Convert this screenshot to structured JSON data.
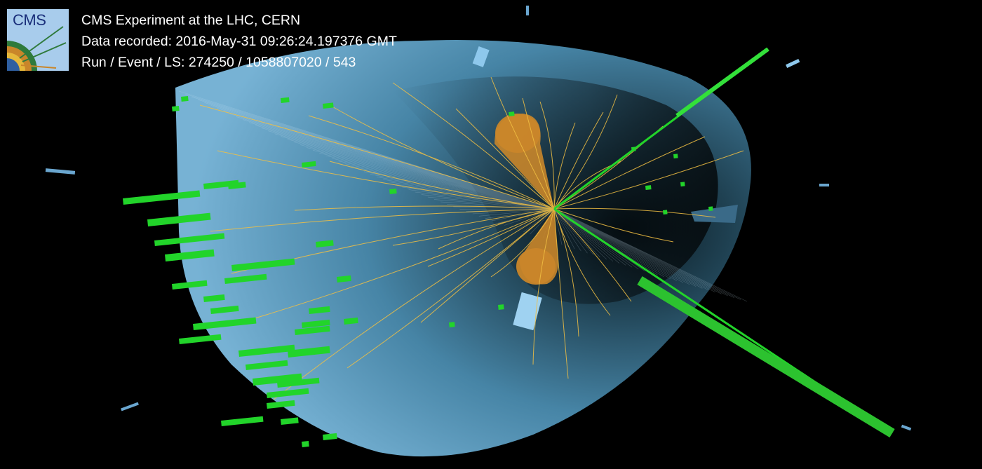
{
  "header": {
    "logo_text": "CMS",
    "experiment": "CMS Experiment at the LHC, CERN",
    "data_recorded": "Data recorded: 2016-May-31 09:26:24.197376 GMT",
    "run_event_ls": "Run / Event / LS: 274250 / 1058807020 / 543"
  },
  "colors": {
    "background": "#000000",
    "detector": "#7fc3ea",
    "tracks": "#f2c043",
    "jets": "#c9862a",
    "ecal_deposits": "#22d42a",
    "muon_chambers": "#8ec8ec"
  }
}
